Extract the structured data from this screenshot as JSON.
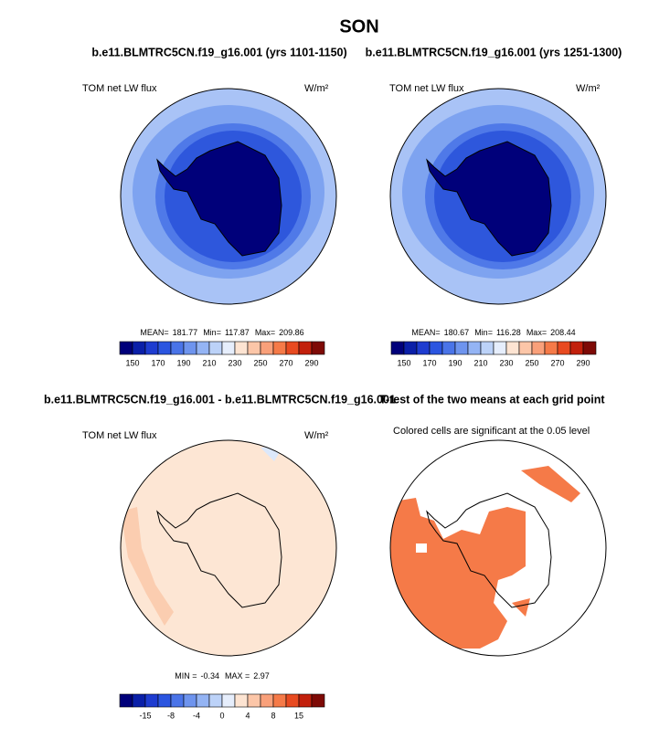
{
  "header": {
    "title": "SON"
  },
  "panels": [
    {
      "title": "b.e11.BLMTRC5CN.f19_g16.001 (yrs 1101-1150)",
      "left_label": "TOM net LW flux",
      "right_label": "W/m²",
      "stats": [
        {
          "label": "MEAN=",
          "value": 181.77
        },
        {
          "label": "Min=",
          "value": 117.87
        },
        {
          "label": "Max=",
          "value": 209.86
        }
      ],
      "colorbar": [
        150,
        170,
        190,
        210,
        230,
        250,
        270,
        290
      ]
    },
    {
      "title": "b.e11.BLMTRC5CN.f19_g16.001 (yrs 1251-1300)",
      "left_label": "TOM net LW flux",
      "right_label": "W/m²",
      "stats": [
        {
          "label": "MEAN=",
          "value": 180.67
        },
        {
          "label": "Min=",
          "value": 116.28
        },
        {
          "label": "Max=",
          "value": 208.44
        }
      ],
      "colorbar": [
        150,
        170,
        190,
        210,
        230,
        250,
        270,
        290
      ]
    },
    {
      "title": "b.e11.BLMTRC5CN.f19_g16.001 - b.e11.BLMTRC5CN.f19_g16.001",
      "left_label": "TOM net LW flux",
      "right_label": "W/m²",
      "stats": [
        {
          "label": "MIN =",
          "value": -0.34
        },
        {
          "label": "MAX =",
          "value": 2.97
        }
      ],
      "colorbar": [
        -15,
        -8,
        -4,
        0,
        4,
        8,
        15
      ]
    },
    {
      "title": "T-test of the two means at each grid point",
      "left_label": "Colored cells are significant at the 0.05 level"
    }
  ],
  "colorbar_colors": [
    "#00007a",
    "#0a1fa8",
    "#1e3cd0",
    "#2b55e0",
    "#4a74e8",
    "#6e94ee",
    "#94b4f4",
    "#bcd2f8",
    "#e6eefc",
    "#fde4d2",
    "#fcc6a8",
    "#f9a07a",
    "#f57a48",
    "#e84a20",
    "#c2200c",
    "#7e0a06"
  ]
}
